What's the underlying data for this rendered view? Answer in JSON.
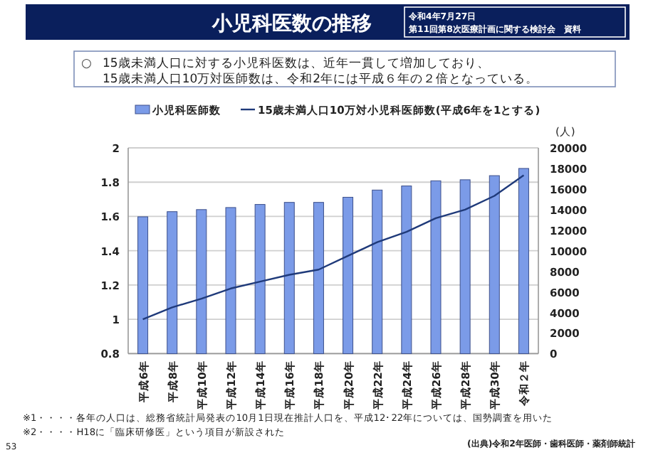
{
  "chart_data": {
    "type": "bar",
    "title": "小児科医数の推移",
    "annotations": [
      "令和4年7月27日",
      "第11回第8次医療計画に関する検討会　資料",
      "○",
      "15歳未満人口に対する小児科医数は、近年一貫して増加しており、",
      "15歳未満人口10万対医師数は、令和2年には平成６年の２倍となっている。",
      "※1・・・・各年の人口は、総務省統計局発表の10月1日現在推計人口を、平成12･22年については、国勢調査を用いた",
      "※2・・・・H18に「臨床研修医」という項目が新設された",
      "(出典)令和2年医師・歯科医師・薬剤師統計",
      "53"
    ],
    "categories": [
      "平成6年",
      "平成8年",
      "平成10年",
      "平成12年",
      "平成14年",
      "平成16年",
      "平成18年",
      "平成20年",
      "平成22年",
      "平成24年",
      "平成26年",
      "平成28年",
      "平成30年",
      "令和２年"
    ],
    "series": [
      {
        "name": "小児科医師数",
        "axis": "y2",
        "color": "#7b9be8",
        "values": [
          13300,
          13800,
          14000,
          14200,
          14500,
          14700,
          14700,
          15200,
          15900,
          16300,
          16800,
          16900,
          17300,
          18000
        ]
      },
      {
        "name": "15歳未満人口10万対小児科医師数(平成6年を1とする)",
        "type": "line",
        "color": "#1f3a7a",
        "values": [
          1.0,
          1.07,
          1.12,
          1.18,
          1.22,
          1.26,
          1.29,
          1.37,
          1.45,
          1.51,
          1.59,
          1.64,
          1.72,
          1.84
        ]
      }
    ],
    "y2label": "(人)",
    "ylim": [
      0.8,
      2
    ],
    "yticks": [
      0.8,
      1,
      1.2,
      1.4,
      1.6,
      1.8,
      2
    ],
    "y2lim": [
      0,
      20000
    ],
    "y2ticks": [
      0,
      2000,
      4000,
      6000,
      8000,
      10000,
      12000,
      14000,
      16000,
      18000,
      20000
    ],
    "grid": "y",
    "legend": "top"
  }
}
